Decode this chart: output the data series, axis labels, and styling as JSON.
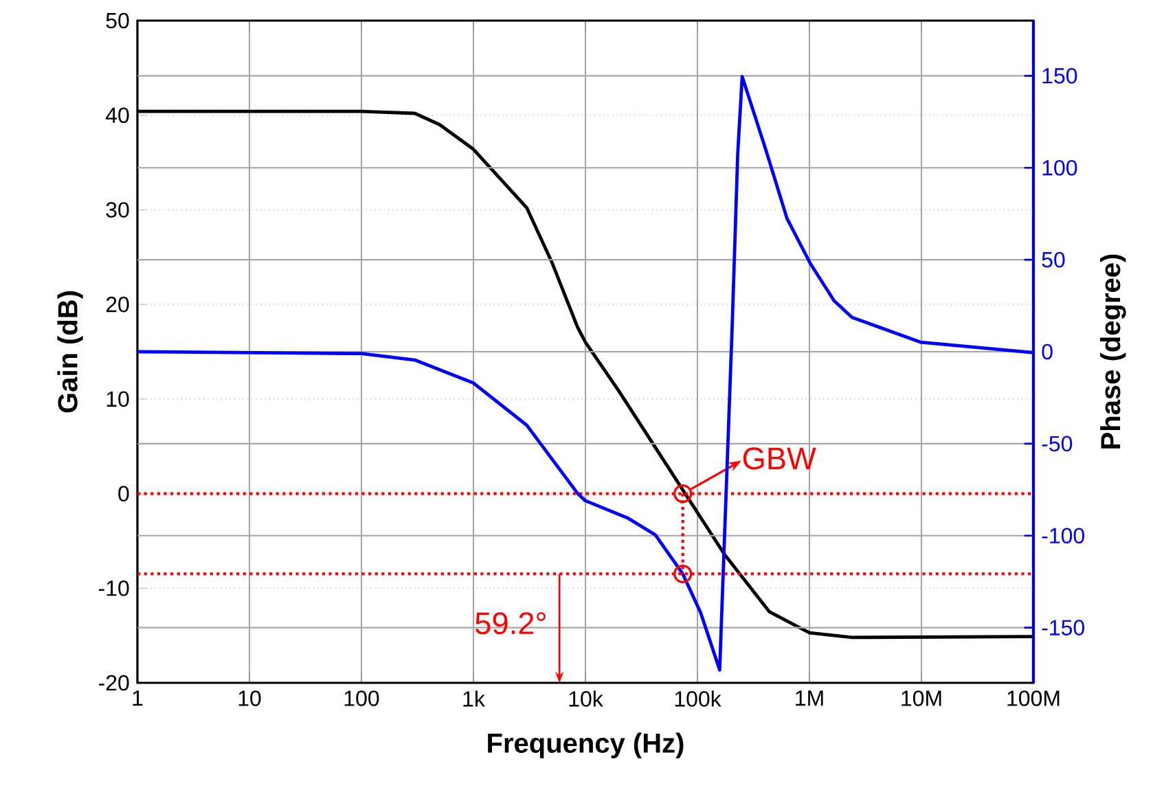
{
  "chart_data": {
    "type": "line",
    "xlabel": "Frequency (Hz)",
    "ylabel": "Gain (dB)",
    "y2label": "Phase (degree)",
    "log": "x",
    "grid": true,
    "xlim": [
      1,
      100000000
    ],
    "xticks": [
      1,
      10,
      100,
      {
        "value": 1000,
        "label": "1k"
      },
      {
        "value": 10000,
        "label": "10k"
      },
      {
        "value": 100000,
        "label": "100k"
      },
      {
        "value": 1000000,
        "label": "1M"
      },
      {
        "value": 10000000,
        "label": "10M"
      },
      {
        "value": 100000000,
        "label": "100M"
      }
    ],
    "ylim": [
      -20,
      50
    ],
    "yticks": [
      -20,
      -10,
      0,
      10,
      20,
      30,
      40,
      50
    ],
    "y2lim": [
      -180,
      180
    ],
    "y2ticks": [
      -150,
      -100,
      -50,
      0,
      50,
      100,
      150
    ],
    "series": [
      {
        "color": "#000000",
        "x": [
          1,
          100,
          300,
          500,
          1000,
          3000,
          5000,
          8500,
          10000,
          20000,
          74000,
          174000,
          440000,
          1000000,
          2400000,
          100000000
        ],
        "values": [
          40.4,
          40.4,
          40.2,
          39,
          36.4,
          30.2,
          24.5,
          17.6,
          16,
          10.8,
          0.4,
          -6.4,
          -12.5,
          -14.7,
          -15.2,
          -15.1
        ]
      },
      {
        "color": "#0000ff",
        "axis": "y2",
        "x": [
          1,
          100,
          300,
          1000,
          3000,
          8500,
          10000,
          24000,
          42000,
          74000,
          107000,
          158000,
          204000,
          229000,
          251000,
          407000,
          630000,
          1020000,
          1660000,
          2400000,
          9800000,
          100000000
        ],
        "values": [
          0,
          -1,
          -4.5,
          -17,
          -40,
          -77,
          -81,
          -90.5,
          -99.5,
          -120.8,
          -142,
          -173,
          12.7,
          107.7,
          149.6,
          110,
          72.5,
          47.9,
          27.7,
          18.7,
          5.2,
          -0.5
        ]
      }
    ],
    "ref_lines": [
      {
        "axis": "y",
        "value": 0,
        "color": "#ff0000",
        "line_style": "dotted"
      },
      {
        "axis": "y2",
        "value": -120.8,
        "color": "#ff0000",
        "line_style": "dotted"
      }
    ],
    "annotations": [
      {
        "text": "GBW",
        "x": 74000,
        "y": 0
      },
      "59.2°"
    ]
  }
}
